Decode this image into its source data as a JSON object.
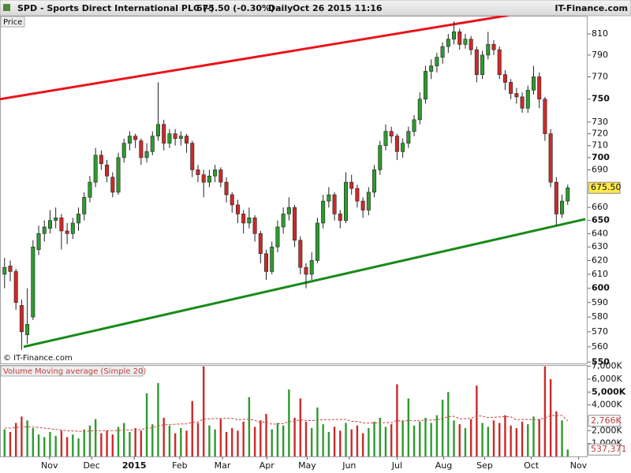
{
  "chart_data": {
    "type": "candlestick",
    "title": "SPD - Sports Direct International PLC (-)",
    "quote": "675.50 (-0.30%)",
    "period": "Daily",
    "timestamp": "Oct 26 2015 11:16",
    "source": "IT-Finance.com",
    "panel_label": "Price",
    "copyright": "© IT-Finance.com",
    "log_scale": true,
    "up_color": "#2f9a2f",
    "down_color": "#cc2a2a",
    "ohlc": [
      [
        610,
        622,
        600,
        615
      ],
      [
        616,
        620,
        605,
        612
      ],
      [
        612,
        614,
        585,
        590
      ],
      [
        588,
        592,
        558,
        570
      ],
      [
        568,
        600,
        562,
        575
      ],
      [
        580,
        635,
        578,
        630
      ],
      [
        628,
        646,
        624,
        640
      ],
      [
        640,
        650,
        634,
        645
      ],
      [
        644,
        658,
        640,
        650
      ],
      [
        650,
        660,
        644,
        652
      ],
      [
        652,
        655,
        628,
        642
      ],
      [
        642,
        648,
        632,
        640
      ],
      [
        640,
        652,
        636,
        648
      ],
      [
        648,
        660,
        642,
        655
      ],
      [
        655,
        672,
        650,
        668
      ],
      [
        668,
        685,
        664,
        680
      ],
      [
        680,
        708,
        676,
        702
      ],
      [
        702,
        706,
        690,
        695
      ],
      [
        694,
        698,
        680,
        685
      ],
      [
        684,
        688,
        668,
        672
      ],
      [
        672,
        704,
        670,
        700
      ],
      [
        700,
        716,
        696,
        712
      ],
      [
        712,
        722,
        706,
        718
      ],
      [
        718,
        720,
        708,
        715
      ],
      [
        714,
        716,
        694,
        700
      ],
      [
        700,
        712,
        696,
        705
      ],
      [
        705,
        722,
        702,
        718
      ],
      [
        718,
        765,
        714,
        728
      ],
      [
        728,
        732,
        706,
        712
      ],
      [
        712,
        724,
        708,
        720
      ],
      [
        720,
        724,
        710,
        716
      ],
      [
        716,
        722,
        710,
        718
      ],
      [
        718,
        720,
        704,
        712
      ],
      [
        712,
        714,
        684,
        690
      ],
      [
        690,
        694,
        680,
        686
      ],
      [
        686,
        690,
        668,
        680
      ],
      [
        680,
        690,
        676,
        685
      ],
      [
        685,
        694,
        680,
        690
      ],
      [
        690,
        692,
        676,
        680
      ],
      [
        680,
        684,
        664,
        670
      ],
      [
        670,
        672,
        656,
        662
      ],
      [
        662,
        666,
        648,
        655
      ],
      [
        655,
        658,
        640,
        648
      ],
      [
        648,
        660,
        644,
        652
      ],
      [
        652,
        654,
        634,
        640
      ],
      [
        640,
        642,
        618,
        625
      ],
      [
        625,
        628,
        606,
        612
      ],
      [
        612,
        634,
        610,
        630
      ],
      [
        630,
        650,
        626,
        645
      ],
      [
        645,
        660,
        640,
        655
      ],
      [
        655,
        668,
        650,
        660
      ],
      [
        660,
        662,
        630,
        635
      ],
      [
        635,
        638,
        610,
        615
      ],
      [
        615,
        618,
        600,
        610
      ],
      [
        610,
        626,
        606,
        620
      ],
      [
        620,
        652,
        618,
        648
      ],
      [
        648,
        670,
        644,
        665
      ],
      [
        665,
        676,
        660,
        670
      ],
      [
        670,
        672,
        650,
        655
      ],
      [
        655,
        658,
        644,
        650
      ],
      [
        650,
        688,
        648,
        680
      ],
      [
        680,
        686,
        670,
        675
      ],
      [
        675,
        678,
        660,
        665
      ],
      [
        665,
        668,
        652,
        658
      ],
      [
        658,
        676,
        654,
        672
      ],
      [
        672,
        694,
        668,
        690
      ],
      [
        690,
        714,
        686,
        710
      ],
      [
        710,
        728,
        706,
        722
      ],
      [
        722,
        726,
        712,
        718
      ],
      [
        718,
        720,
        698,
        705
      ],
      [
        705,
        716,
        700,
        712
      ],
      [
        712,
        726,
        708,
        722
      ],
      [
        722,
        736,
        718,
        732
      ],
      [
        732,
        756,
        728,
        750
      ],
      [
        750,
        780,
        746,
        775
      ],
      [
        775,
        786,
        768,
        780
      ],
      [
        780,
        792,
        774,
        788
      ],
      [
        788,
        802,
        782,
        798
      ],
      [
        798,
        810,
        792,
        805
      ],
      [
        805,
        822,
        800,
        812
      ],
      [
        812,
        815,
        795,
        800
      ],
      [
        800,
        810,
        796,
        805
      ],
      [
        805,
        808,
        790,
        795
      ],
      [
        795,
        798,
        765,
        772
      ],
      [
        772,
        794,
        768,
        790
      ],
      [
        790,
        812,
        786,
        800
      ],
      [
        800,
        804,
        790,
        795
      ],
      [
        795,
        798,
        768,
        772
      ],
      [
        772,
        776,
        758,
        765
      ],
      [
        765,
        768,
        750,
        755
      ],
      [
        755,
        760,
        746,
        752
      ],
      [
        752,
        756,
        738,
        742
      ],
      [
        742,
        762,
        738,
        758
      ],
      [
        758,
        780,
        754,
        770
      ],
      [
        770,
        774,
        742,
        750
      ],
      [
        750,
        752,
        714,
        720
      ],
      [
        720,
        724,
        676,
        680
      ],
      [
        680,
        684,
        646,
        655
      ],
      [
        655,
        670,
        652,
        665
      ],
      [
        665,
        678,
        662,
        675.5
      ]
    ],
    "xlim": [
      -0.8,
      102.5
    ],
    "xticks": [
      {
        "value": 7.9,
        "label": "Nov"
      },
      {
        "value": 15.3,
        "label": "Dec"
      },
      {
        "value": 22.8,
        "label": "2015"
      },
      {
        "value": 30.8,
        "label": "Feb"
      },
      {
        "value": 38.3,
        "label": "Mar"
      },
      {
        "value": 46.1,
        "label": "Apr"
      },
      {
        "value": 53.2,
        "label": "May"
      },
      {
        "value": 60.6,
        "label": "Jun"
      },
      {
        "value": 69,
        "label": "Jul"
      },
      {
        "value": 77.2,
        "label": "Aug"
      },
      {
        "value": 84.4,
        "label": "Sep"
      },
      {
        "value": 92.6,
        "label": "Oct"
      },
      {
        "value": 100.9,
        "label": "Nov"
      }
    ],
    "ylim": [
      548.6,
      827.5
    ],
    "yticks": [
      550,
      560,
      570,
      580,
      590,
      600,
      610,
      620,
      630,
      640,
      650,
      660,
      690,
      700,
      710,
      720,
      730,
      750,
      770,
      790,
      810
    ],
    "price_label": {
      "value": 675.5,
      "label": "675.50"
    },
    "trendlines": [
      {
        "color": "#e8141c",
        "start": [
          -0.8,
          750
        ],
        "end": [
          88.6,
          828
        ]
      },
      {
        "color": "#1a8a1a",
        "start": [
          3.36,
          560
        ],
        "end": [
          102.1,
          651
        ]
      }
    ],
    "volume": {
      "label": "Volume",
      "ma_name": "Moving average (Simple 20)",
      "ma_color": "#d04040",
      "values": [
        2100000,
        1900000,
        2600000,
        3100000,
        2800000,
        2200000,
        1700000,
        1500000,
        1900000,
        1600000,
        2000000,
        1500000,
        1700000,
        1400000,
        2100000,
        2400000,
        2900000,
        1800000,
        2000000,
        1700000,
        2300000,
        2600000,
        1900000,
        2200000,
        2000000,
        4900000,
        2500000,
        5700000,
        3000000,
        2400000,
        1800000,
        2200000,
        2000000,
        4300000,
        2600000,
        7000000,
        2400000,
        2100000,
        2900000,
        1900000,
        2200000,
        2000000,
        2700000,
        4600000,
        2300000,
        2800000,
        3300000,
        2100000,
        2600000,
        2400000,
        5200000,
        3000000,
        4500000,
        2700000,
        2200000,
        3800000,
        2500000,
        1900000,
        2300000,
        2000000,
        2600000,
        2100000,
        2400000,
        1800000,
        2200000,
        2700000,
        3000000,
        2300000,
        2500000,
        5600000,
        2800000,
        4500000,
        2400000,
        2700000,
        3000000,
        2600000,
        3200000,
        4400000,
        5000000,
        2800000,
        2500000,
        2200000,
        2900000,
        5500000,
        2600000,
        2300000,
        2800000,
        2600000,
        3200000,
        2400000,
        2200000,
        2700000,
        2500000,
        3100000,
        2900000,
        7000000,
        6000000,
        3500000,
        2800000,
        537371
      ],
      "ma": [
        2200000,
        2200000,
        2250000,
        2300000,
        2300000,
        2280000,
        2250000,
        2200000,
        2150000,
        2100000,
        2050000,
        2000000,
        1980000,
        1950000,
        1950000,
        1980000,
        2000000,
        2000000,
        2010000,
        2000000,
        2010000,
        2050000,
        2050000,
        2060000,
        2080000,
        2200000,
        2220000,
        2400000,
        2450000,
        2480000,
        2500000,
        2520000,
        2530000,
        2650000,
        2680000,
        2900000,
        2920000,
        2940000,
        2950000,
        2960000,
        2960000,
        2850000,
        2880000,
        2900000,
        2800000,
        2640000,
        2680000,
        2500000,
        2530000,
        2550000,
        2700000,
        2720000,
        2850000,
        2790000,
        2780000,
        2820000,
        2860000,
        2850000,
        2870000,
        2870000,
        2880000,
        2720000,
        2720000,
        2610000,
        2590000,
        2600000,
        2620000,
        2630000,
        2620000,
        2800000,
        2720000,
        2800000,
        2770000,
        2780000,
        2830000,
        2820000,
        2850000,
        2960000,
        3090000,
        3120000,
        2920000,
        2930000,
        2960000,
        3160000,
        3130000,
        3010000,
        3040000,
        3070000,
        3100000,
        3070000,
        2850000,
        2860000,
        2870000,
        2860000,
        2850000,
        3000000,
        3170000,
        3180000,
        3180000,
        2766000
      ],
      "ylim": [
        0,
        7100000
      ],
      "yticks": [
        {
          "value": 1000000,
          "label": "1,000K"
        },
        {
          "value": 2000000,
          "label": "2,000K"
        },
        {
          "value": 4000000,
          "label": "4,000K"
        },
        {
          "value": 5000000,
          "label": "5,000K"
        },
        {
          "value": 6000000,
          "label": "6,000K"
        },
        {
          "value": 7000000,
          "label": "7,000K"
        }
      ],
      "ma_label": {
        "value": 2766000,
        "label": "2,766K"
      },
      "volume_label": {
        "value": 537371,
        "label": "537,371"
      }
    }
  }
}
